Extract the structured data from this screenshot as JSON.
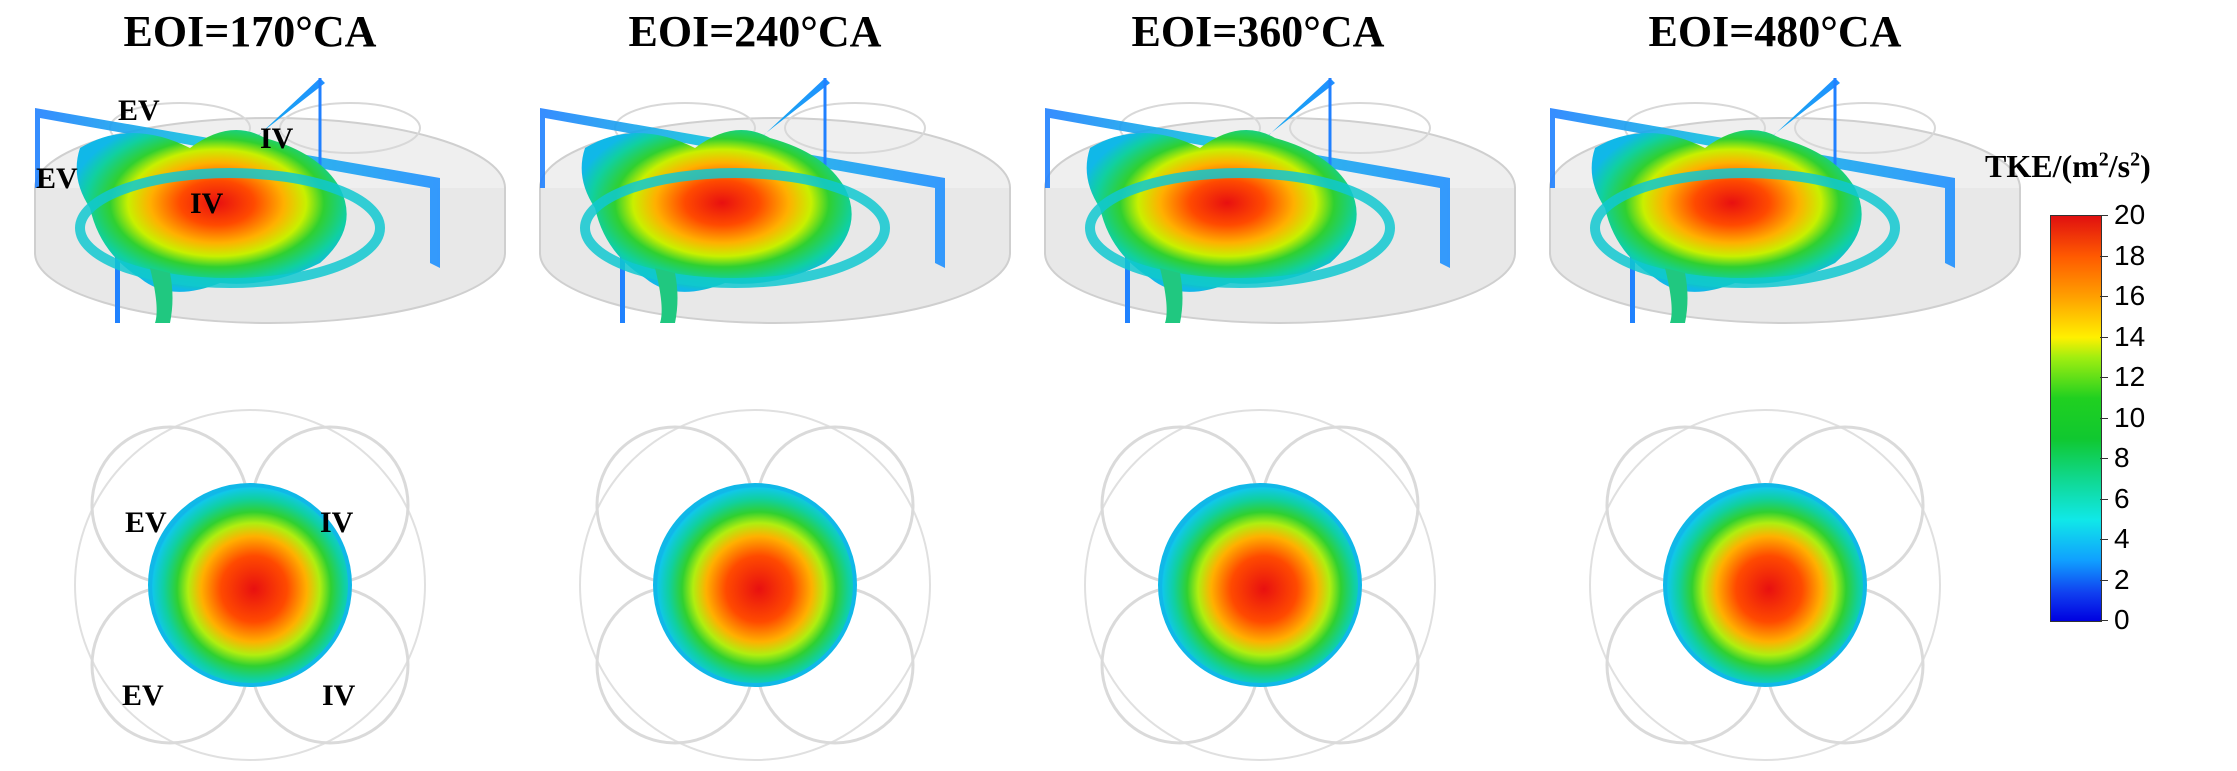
{
  "panels": [
    {
      "title": "EOI=170°CA"
    },
    {
      "title": "EOI=240°CA"
    },
    {
      "title": "EOI=360°CA"
    },
    {
      "title": "EOI=480°CA"
    }
  ],
  "valve_labels": {
    "iso": [
      "EV",
      "IV",
      "EV",
      "IV"
    ],
    "top": [
      "EV",
      "IV",
      "EV",
      "IV"
    ]
  },
  "colorbar": {
    "title_prefix": "TKE/(m",
    "title_sup1": "2",
    "title_mid": "/s",
    "title_sup2": "2",
    "title_suffix": ")",
    "ticks": [
      "20",
      "18",
      "16",
      "14",
      "12",
      "10",
      "8",
      "6",
      "4",
      "2",
      "0"
    ],
    "colors": [
      "#e01010",
      "#ff5a00",
      "#ffa000",
      "#fff000",
      "#20d020",
      "#10d890",
      "#10e8e8",
      "#10a0ff",
      "#0000e0"
    ]
  }
}
